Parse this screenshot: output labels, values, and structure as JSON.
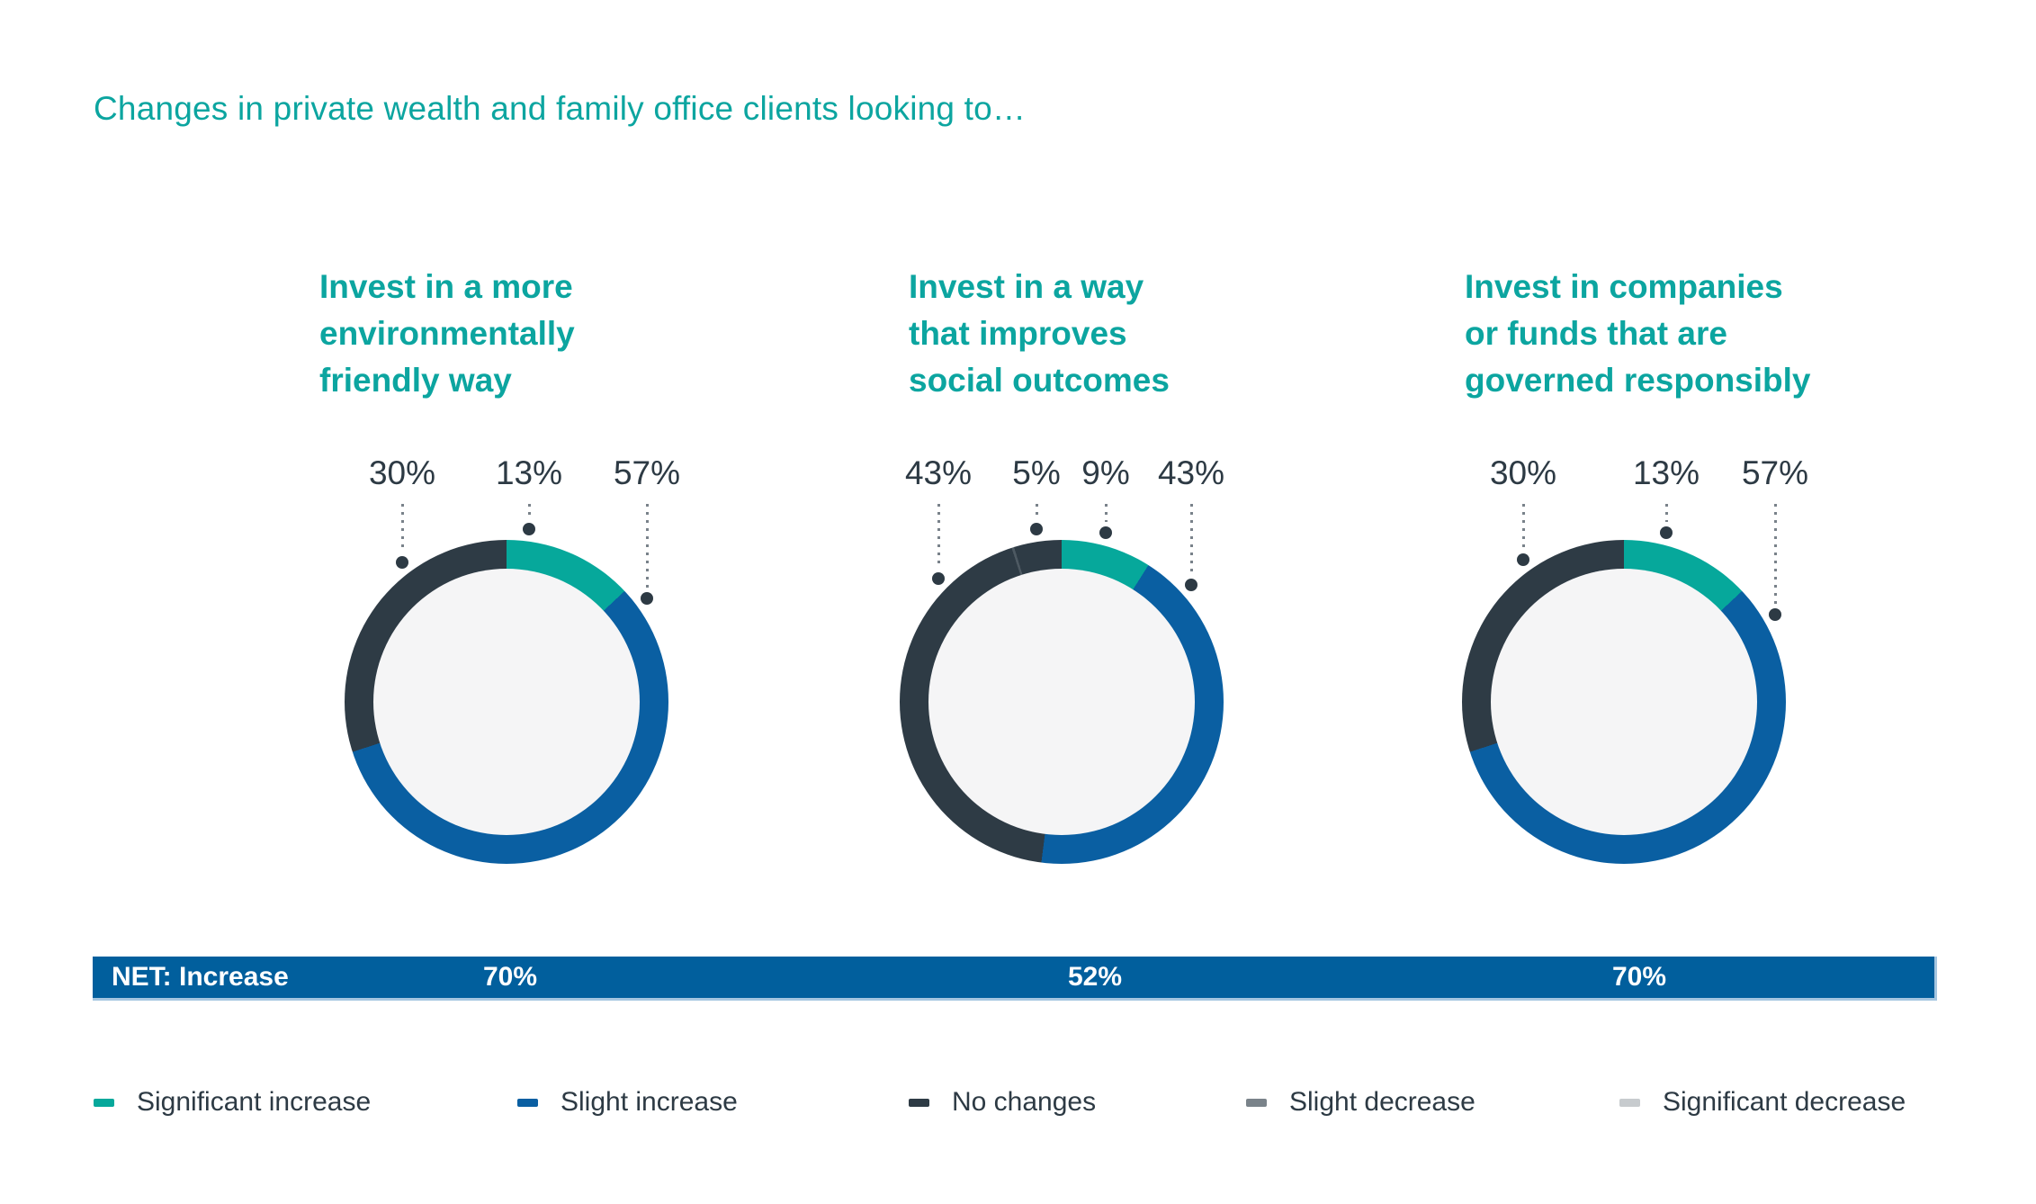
{
  "title": "Changes in private wealth and family office clients looking to…",
  "colors": {
    "teal": "#06a89b",
    "blue": "#0a5fa2",
    "navy": "#2e3b45",
    "gray": "#7a838a",
    "light_gray": "#c7cbce",
    "separator": "#4d5962",
    "bar_blue": "#015f9d",
    "title_teal": "#0ca5a0",
    "text_navy": "#2d3a44",
    "hole_fill": "#f5f5f6"
  },
  "panels": [
    {
      "heading": "Invest in a more\nenvironmentally\nfriendly way",
      "callouts": [
        "30%",
        "13%",
        "57%"
      ],
      "segments": [
        {
          "color_key": "teal",
          "value": 13
        },
        {
          "color_key": "blue",
          "value": 57
        },
        {
          "color_key": "navy",
          "value": 30
        }
      ],
      "net_value": "70%"
    },
    {
      "heading": "Invest in a way\nthat improves\nsocial outcomes",
      "callouts": [
        "43%",
        "5%",
        "9%",
        "43%"
      ],
      "segments": [
        {
          "color_key": "teal",
          "value": 9
        },
        {
          "color_key": "blue",
          "value": 43
        },
        {
          "color_key": "navy",
          "value": 43
        },
        {
          "color_key": "navy",
          "value": 5
        }
      ],
      "net_value": "52%"
    },
    {
      "heading": "Invest in companies\nor funds that are\ngoverned responsibly",
      "callouts": [
        "30%",
        "13%",
        "57%"
      ],
      "segments": [
        {
          "color_key": "teal",
          "value": 13
        },
        {
          "color_key": "blue",
          "value": 57
        },
        {
          "color_key": "navy",
          "value": 30
        }
      ],
      "net_value": "70%"
    }
  ],
  "net_bar": {
    "label": "NET: Increase",
    "values": [
      "70%",
      "52%",
      "70%"
    ]
  },
  "legend": {
    "items": [
      {
        "label": "Significant increase",
        "color_key": "teal"
      },
      {
        "label": "Slight increase",
        "color_key": "blue"
      },
      {
        "label": "No changes",
        "color_key": "navy"
      },
      {
        "label": "Slight decrease",
        "color_key": "gray"
      },
      {
        "label": "Significant decrease",
        "color_key": "light_gray"
      }
    ]
  },
  "chart_data": [
    {
      "type": "pie",
      "title": "Invest in a more environmentally friendly way",
      "slices": [
        {
          "label": "Significant increase",
          "value": 13
        },
        {
          "label": "Slight increase",
          "value": 57
        },
        {
          "label": "No changes",
          "value": 30
        }
      ],
      "net_increase": 70
    },
    {
      "type": "pie",
      "title": "Invest in a way that improves social outcomes",
      "slices": [
        {
          "label": "Significant increase",
          "value": 9
        },
        {
          "label": "Slight increase",
          "value": 43
        },
        {
          "label": "No changes",
          "value": 43
        },
        {
          "label": "Slight decrease",
          "value": 5
        }
      ],
      "net_increase": 52
    },
    {
      "type": "pie",
      "title": "Invest in companies or funds that are governed responsibly",
      "slices": [
        {
          "label": "Significant increase",
          "value": 13
        },
        {
          "label": "Slight increase",
          "value": 57
        },
        {
          "label": "No changes",
          "value": 30
        }
      ],
      "net_increase": 70
    }
  ]
}
